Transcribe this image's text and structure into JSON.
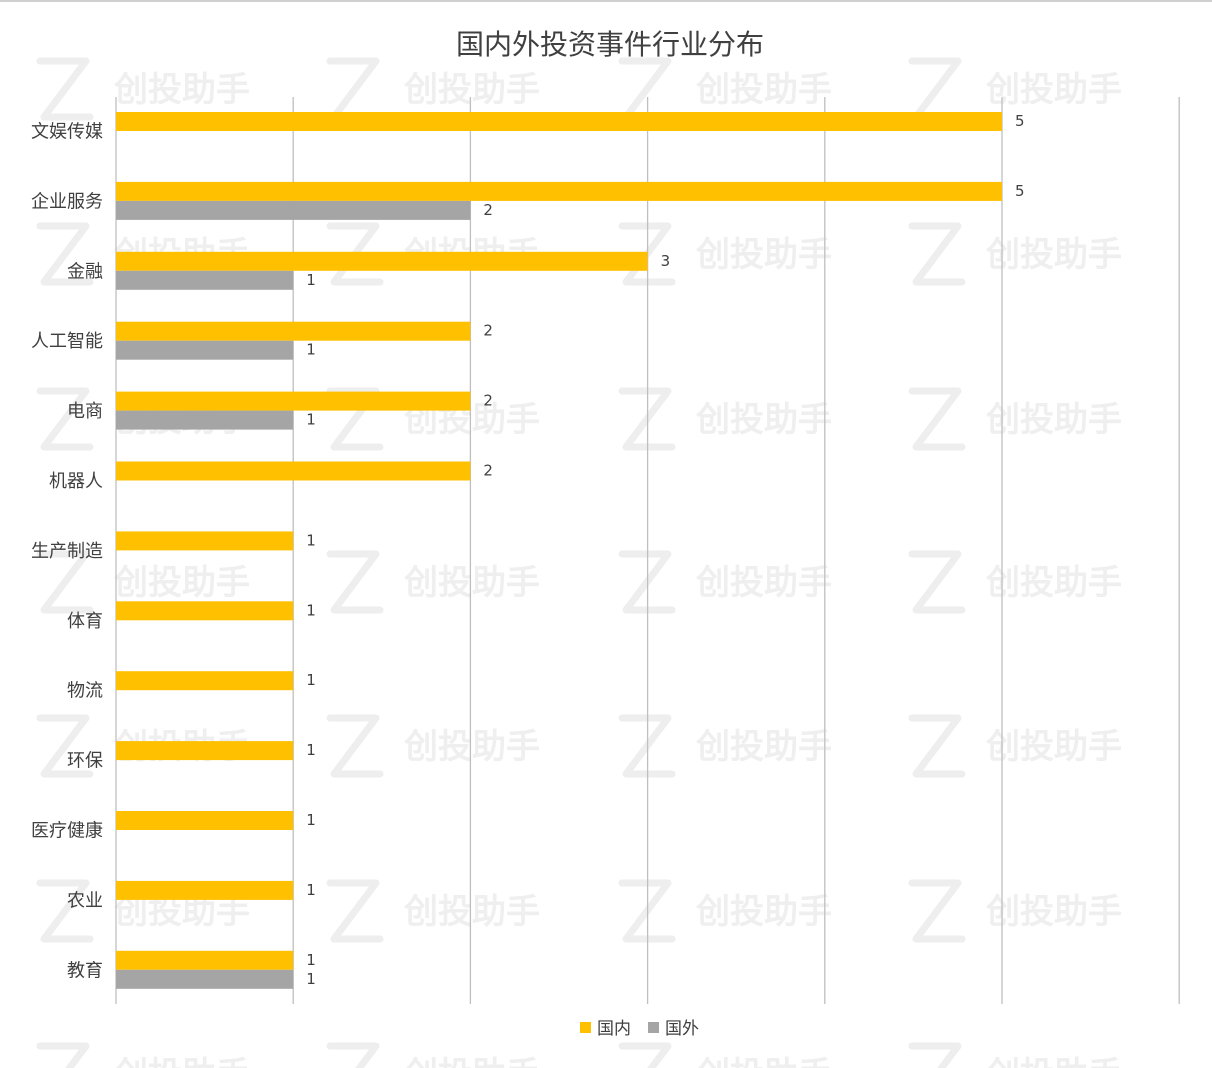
{
  "chart_data": {
    "type": "bar",
    "orientation": "horizontal",
    "title": "国内外投资事件行业分布",
    "categories": [
      "文娱传媒",
      "企业服务",
      "金融",
      "人工智能",
      "电商",
      "机器人",
      "生产制造",
      "体育",
      "物流",
      "环保",
      "医疗健康",
      "农业",
      "教育"
    ],
    "series": [
      {
        "name": "国内",
        "color": "#FFC000",
        "values": [
          5,
          5,
          3,
          2,
          2,
          2,
          1,
          1,
          1,
          1,
          1,
          1,
          1
        ]
      },
      {
        "name": "国外",
        "color": "#A5A5A5",
        "values": [
          null,
          2,
          1,
          1,
          1,
          null,
          null,
          null,
          null,
          null,
          null,
          null,
          1
        ]
      }
    ],
    "xlim": [
      0,
      6
    ],
    "grid": true,
    "legend_position": "bottom",
    "data_labels": true
  },
  "watermark": {
    "text": "创投助手",
    "color": "#efefef"
  }
}
